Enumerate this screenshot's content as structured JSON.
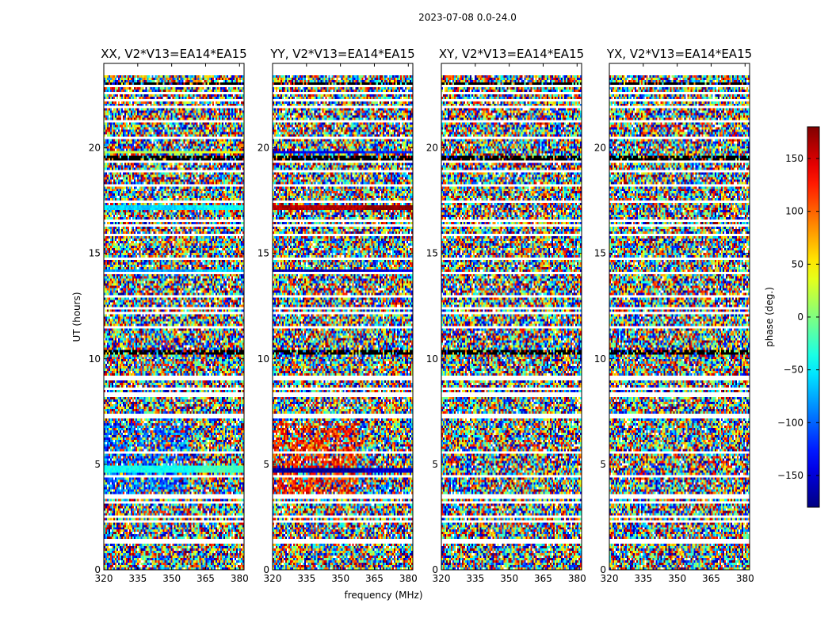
{
  "chart_data": {
    "type": "heatmap",
    "suptitle": "2023-07-08 0.0-24.0",
    "xlabel": "frequency (MHz)",
    "ylabel": "UT (hours)",
    "xlim": [
      320,
      382
    ],
    "ylim": [
      0,
      24
    ],
    "xticks": [
      "320",
      "335",
      "350",
      "365",
      "380"
    ],
    "xtick_values": [
      320,
      335,
      350,
      365,
      380
    ],
    "yticks": [
      "0",
      "5",
      "10",
      "15",
      "20"
    ],
    "ytick_values": [
      0,
      5,
      10,
      15,
      20
    ],
    "colorbar": {
      "label": "phase (deg.)",
      "range": [
        -180,
        180
      ],
      "colormap": "jet",
      "ticks": [
        "150",
        "100",
        "50",
        "0",
        "−50",
        "−100",
        "−150"
      ],
      "tick_values": [
        150,
        100,
        50,
        0,
        -50,
        -100,
        -150
      ]
    },
    "panels": [
      {
        "title": "XX, V2*V13=EA14*EA15",
        "polarization": "XX"
      },
      {
        "title": "YY, V2*V13=EA14*EA15",
        "polarization": "YY"
      },
      {
        "title": "XY, V2*V13=EA14*EA15",
        "polarization": "XY"
      },
      {
        "title": "YX, V2*V13=EA14*EA15",
        "polarization": "YX"
      }
    ],
    "flagged_hours": [
      1.3,
      1.45,
      2.35,
      2.5,
      3.2,
      3.4,
      3.55,
      4.4,
      5.5,
      7.2,
      7.35,
      8.3,
      8.6,
      9.0,
      9.15,
      11.5,
      12.2,
      12.4,
      13.0,
      14.1,
      14.7,
      15.9,
      16.3,
      16.55,
      17.4,
      18.2,
      18.9,
      19.3,
      20.5,
      21.3,
      21.9,
      22.3,
      22.6,
      22.9
    ],
    "black_band_hours": [
      [
        10.2,
        10.4
      ],
      [
        22.95,
        23.15
      ],
      [
        19.45,
        19.6
      ]
    ],
    "coherent_bands": [
      {
        "panel": "XX",
        "hours": [
          4.6,
          4.9
        ],
        "phase_deg": -40
      },
      {
        "panel": "XX",
        "hours": [
          17.1,
          17.3
        ],
        "phase_deg": -60
      },
      {
        "panel": "XX",
        "hours": [
          14.1,
          14.25
        ],
        "phase_deg": -80
      },
      {
        "panel": "XX",
        "hours": [
          19.7,
          19.8
        ],
        "phase_deg": 20
      },
      {
        "panel": "YY",
        "hours": [
          4.6,
          4.85
        ],
        "phase_deg": -170
      },
      {
        "panel": "YY",
        "hours": [
          17.1,
          17.3
        ],
        "phase_deg": 160
      },
      {
        "panel": "YY",
        "hours": [
          14.0,
          14.2
        ],
        "phase_deg": -160
      },
      {
        "panel": "YY",
        "hours": [
          19.7,
          19.85
        ],
        "phase_deg": -140
      },
      {
        "panel": "YY",
        "hours": [
          8.2,
          8.3
        ],
        "phase_deg": -160
      }
    ]
  }
}
